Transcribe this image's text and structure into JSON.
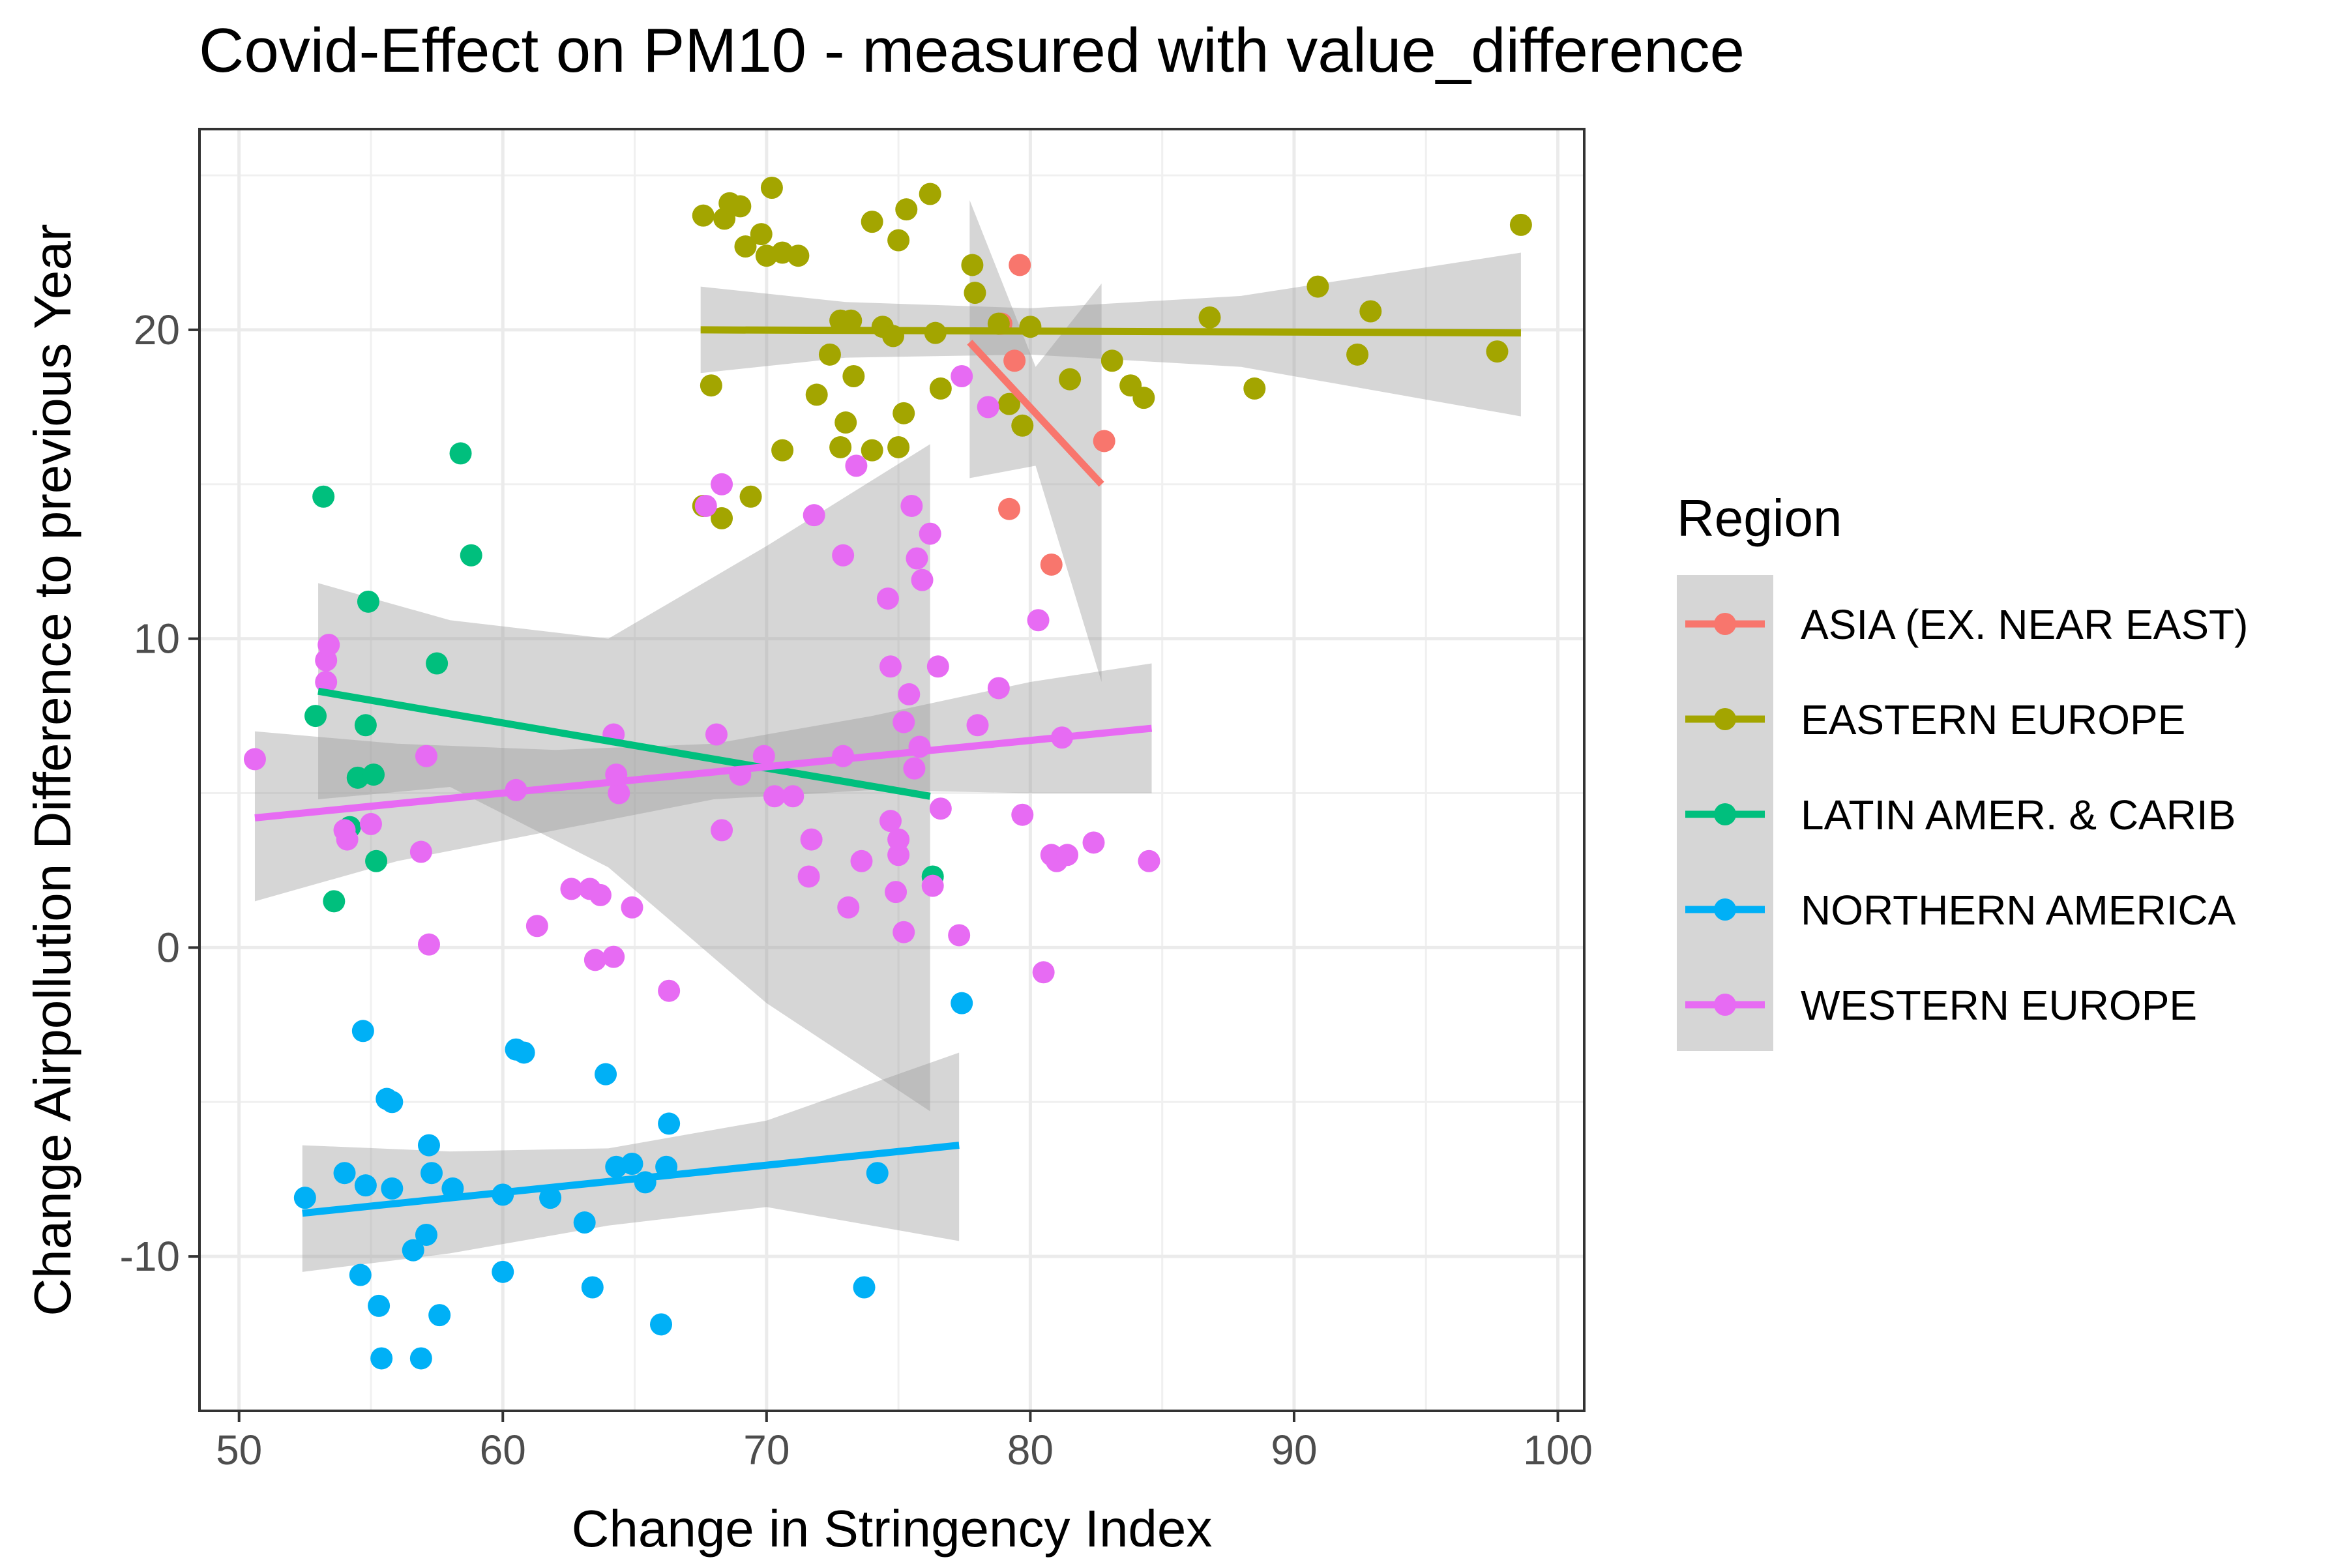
{
  "chart_data": {
    "type": "scatter",
    "title": "Covid-Effect on PM10 - measured with value_difference",
    "xlabel": "Change in Stringency Index",
    "ylabel": "Change Airpollution Difference to previous Year",
    "xlim": [
      48.5,
      101
    ],
    "ylim": [
      -15,
      26.5
    ],
    "x_ticks": [
      50,
      60,
      70,
      80,
      90,
      100
    ],
    "y_ticks": [
      -10,
      0,
      10,
      20
    ],
    "grid": true,
    "legend_title": "Region",
    "legend_position": "right",
    "series": [
      {
        "name": "ASIA (EX. NEAR EAST)",
        "color": "#F8766D",
        "points": [
          [
            79.6,
            22.1
          ],
          [
            78.9,
            20.2
          ],
          [
            79.4,
            19.0
          ],
          [
            79.2,
            14.2
          ],
          [
            80.8,
            12.4
          ],
          [
            82.8,
            16.4
          ]
        ],
        "trend": {
          "x": [
            77.7,
            82.7
          ],
          "y": [
            19.6,
            15.0
          ]
        },
        "band": {
          "x": [
            77.7,
            80.2,
            82.7
          ],
          "upper": [
            24.2,
            18.8,
            21.5
          ],
          "lower": [
            15.2,
            15.6,
            8.6
          ]
        }
      },
      {
        "name": "EASTERN EUROPE",
        "color": "#A3A500",
        "points": [
          [
            67.6,
            23.7
          ],
          [
            68.4,
            23.6
          ],
          [
            68.6,
            24.1
          ],
          [
            69.0,
            24.0
          ],
          [
            70.2,
            24.6
          ],
          [
            69.8,
            23.1
          ],
          [
            69.2,
            22.7
          ],
          [
            70.0,
            22.4
          ],
          [
            70.6,
            22.5
          ],
          [
            71.2,
            22.4
          ],
          [
            74.0,
            23.5
          ],
          [
            75.0,
            22.9
          ],
          [
            75.3,
            23.9
          ],
          [
            76.2,
            24.4
          ],
          [
            77.8,
            22.1
          ],
          [
            77.9,
            21.2
          ],
          [
            80.0,
            20.1
          ],
          [
            78.8,
            20.2
          ],
          [
            72.8,
            20.3
          ],
          [
            73.2,
            20.3
          ],
          [
            74.4,
            20.1
          ],
          [
            74.8,
            19.8
          ],
          [
            76.4,
            19.9
          ],
          [
            72.4,
            19.2
          ],
          [
            73.3,
            18.5
          ],
          [
            71.9,
            17.9
          ],
          [
            73.0,
            17.0
          ],
          [
            75.2,
            17.3
          ],
          [
            72.8,
            16.2
          ],
          [
            74.0,
            16.1
          ],
          [
            75.0,
            16.2
          ],
          [
            70.6,
            16.1
          ],
          [
            76.6,
            18.1
          ],
          [
            67.9,
            18.2
          ],
          [
            69.4,
            14.6
          ],
          [
            67.6,
            14.3
          ],
          [
            68.3,
            13.9
          ],
          [
            79.2,
            17.6
          ],
          [
            79.7,
            16.9
          ],
          [
            81.5,
            18.4
          ],
          [
            83.1,
            19.0
          ],
          [
            83.8,
            18.2
          ],
          [
            84.3,
            17.8
          ],
          [
            86.8,
            20.4
          ],
          [
            88.5,
            18.1
          ],
          [
            90.9,
            21.4
          ],
          [
            92.4,
            19.2
          ],
          [
            92.9,
            20.6
          ],
          [
            97.7,
            19.3
          ],
          [
            98.6,
            23.4
          ]
        ],
        "trend": {
          "x": [
            67.5,
            98.6
          ],
          "y": [
            20.0,
            19.9
          ]
        },
        "band": {
          "x": [
            67.5,
            73.0,
            80.0,
            88.0,
            98.6
          ],
          "upper": [
            21.4,
            20.9,
            20.7,
            21.1,
            22.5
          ],
          "lower": [
            18.6,
            19.1,
            19.2,
            18.8,
            17.2
          ]
        }
      },
      {
        "name": "LATIN AMER. & CARIB",
        "color": "#00BF7D",
        "points": [
          [
            53.2,
            14.6
          ],
          [
            58.4,
            16.0
          ],
          [
            58.8,
            12.7
          ],
          [
            54.9,
            11.2
          ],
          [
            57.5,
            9.2
          ],
          [
            52.9,
            7.5
          ],
          [
            54.8,
            7.2
          ],
          [
            54.5,
            5.5
          ],
          [
            55.1,
            5.6
          ],
          [
            54.2,
            3.9
          ],
          [
            55.2,
            2.8
          ],
          [
            53.6,
            1.5
          ],
          [
            76.3,
            2.3
          ]
        ],
        "trend": {
          "x": [
            53.0,
            76.2
          ],
          "y": [
            8.3,
            4.9
          ]
        },
        "band": {
          "x": [
            53.0,
            58.0,
            64.0,
            70.0,
            76.2
          ],
          "upper": [
            11.8,
            10.6,
            10.0,
            13.0,
            16.3
          ],
          "lower": [
            4.8,
            5.2,
            2.6,
            -1.8,
            -5.3
          ]
        }
      },
      {
        "name": "NORTHERN AMERICA",
        "color": "#00B0F6",
        "points": [
          [
            52.5,
            -8.1
          ],
          [
            54.0,
            -7.3
          ],
          [
            54.8,
            -7.7
          ],
          [
            55.8,
            -7.8
          ],
          [
            57.3,
            -7.3
          ],
          [
            58.1,
            -7.8
          ],
          [
            60.0,
            -8.0
          ],
          [
            61.8,
            -8.1
          ],
          [
            63.1,
            -8.9
          ],
          [
            64.3,
            -7.1
          ],
          [
            64.9,
            -7.0
          ],
          [
            65.4,
            -7.6
          ],
          [
            66.2,
            -7.1
          ],
          [
            74.2,
            -7.3
          ],
          [
            54.7,
            -2.7
          ],
          [
            60.5,
            -3.3
          ],
          [
            60.8,
            -3.4
          ],
          [
            63.9,
            -4.1
          ],
          [
            55.6,
            -4.9
          ],
          [
            55.8,
            -5.0
          ],
          [
            57.2,
            -6.4
          ],
          [
            66.3,
            -5.7
          ],
          [
            77.4,
            -1.8
          ],
          [
            54.6,
            -10.6
          ],
          [
            56.6,
            -9.8
          ],
          [
            57.1,
            -9.3
          ],
          [
            60.0,
            -10.5
          ],
          [
            63.4,
            -11.0
          ],
          [
            73.7,
            -11.0
          ],
          [
            55.3,
            -11.6
          ],
          [
            57.6,
            -11.9
          ],
          [
            66.0,
            -12.2
          ],
          [
            55.4,
            -13.3
          ],
          [
            56.9,
            -13.3
          ]
        ],
        "trend": {
          "x": [
            52.4,
            77.3
          ],
          "y": [
            -8.6,
            -6.4
          ]
        },
        "band": {
          "x": [
            52.4,
            58.0,
            64.0,
            70.0,
            77.3
          ],
          "upper": [
            -6.4,
            -6.6,
            -6.5,
            -5.6,
            -3.4
          ],
          "lower": [
            -10.5,
            -9.9,
            -9.0,
            -8.4,
            -9.5
          ]
        }
      },
      {
        "name": "WESTERN EUROPE",
        "color": "#E76BF3",
        "points": [
          [
            50.6,
            6.1
          ],
          [
            53.3,
            9.3
          ],
          [
            53.4,
            9.8
          ],
          [
            53.3,
            8.6
          ],
          [
            54.0,
            3.8
          ],
          [
            54.1,
            3.5
          ],
          [
            55.0,
            4.0
          ],
          [
            57.1,
            6.2
          ],
          [
            56.9,
            3.1
          ],
          [
            57.2,
            0.1
          ],
          [
            60.5,
            5.1
          ],
          [
            61.3,
            0.7
          ],
          [
            62.6,
            1.9
          ],
          [
            63.3,
            1.9
          ],
          [
            63.7,
            1.7
          ],
          [
            63.5,
            -0.4
          ],
          [
            64.2,
            -0.3
          ],
          [
            64.3,
            5.6
          ],
          [
            64.2,
            6.9
          ],
          [
            64.4,
            5.0
          ],
          [
            64.9,
            1.3
          ],
          [
            66.3,
            -1.4
          ],
          [
            67.7,
            14.3
          ],
          [
            68.3,
            15.0
          ],
          [
            68.1,
            6.9
          ],
          [
            68.3,
            3.8
          ],
          [
            69.9,
            6.2
          ],
          [
            69.0,
            5.6
          ],
          [
            70.3,
            4.9
          ],
          [
            71.0,
            4.9
          ],
          [
            71.6,
            2.3
          ],
          [
            71.7,
            3.5
          ],
          [
            71.8,
            14.0
          ],
          [
            72.9,
            6.2
          ],
          [
            73.1,
            1.3
          ],
          [
            73.6,
            2.8
          ],
          [
            72.9,
            12.7
          ],
          [
            73.4,
            15.6
          ],
          [
            74.6,
            11.3
          ],
          [
            74.7,
            9.1
          ],
          [
            74.7,
            4.1
          ],
          [
            74.9,
            1.8
          ],
          [
            75.0,
            3.0
          ],
          [
            75.0,
            3.5
          ],
          [
            75.2,
            7.3
          ],
          [
            75.4,
            8.2
          ],
          [
            75.2,
            0.5
          ],
          [
            75.5,
            14.3
          ],
          [
            75.7,
            12.6
          ],
          [
            75.9,
            11.9
          ],
          [
            75.8,
            6.5
          ],
          [
            75.6,
            5.8
          ],
          [
            76.2,
            13.4
          ],
          [
            76.3,
            2.0
          ],
          [
            76.5,
            9.1
          ],
          [
            76.6,
            4.5
          ],
          [
            77.4,
            18.5
          ],
          [
            77.3,
            0.4
          ],
          [
            78.0,
            7.2
          ],
          [
            78.4,
            17.5
          ],
          [
            78.8,
            8.4
          ],
          [
            79.7,
            4.3
          ],
          [
            80.3,
            10.6
          ],
          [
            80.5,
            -0.8
          ],
          [
            80.8,
            3.0
          ],
          [
            81.0,
            2.8
          ],
          [
            81.2,
            6.8
          ],
          [
            81.4,
            3.0
          ],
          [
            82.4,
            3.4
          ],
          [
            84.5,
            2.8
          ]
        ],
        "trend": {
          "x": [
            50.6,
            84.6
          ],
          "y": [
            4.2,
            7.1
          ]
        },
        "band": {
          "x": [
            50.6,
            56.0,
            62.0,
            68.0,
            74.0,
            80.0,
            84.6
          ],
          "upper": [
            7.0,
            6.6,
            6.4,
            6.6,
            7.5,
            8.6,
            9.2
          ],
          "lower": [
            1.5,
            2.8,
            3.8,
            4.8,
            5.1,
            5.0,
            5.0
          ]
        }
      }
    ]
  }
}
